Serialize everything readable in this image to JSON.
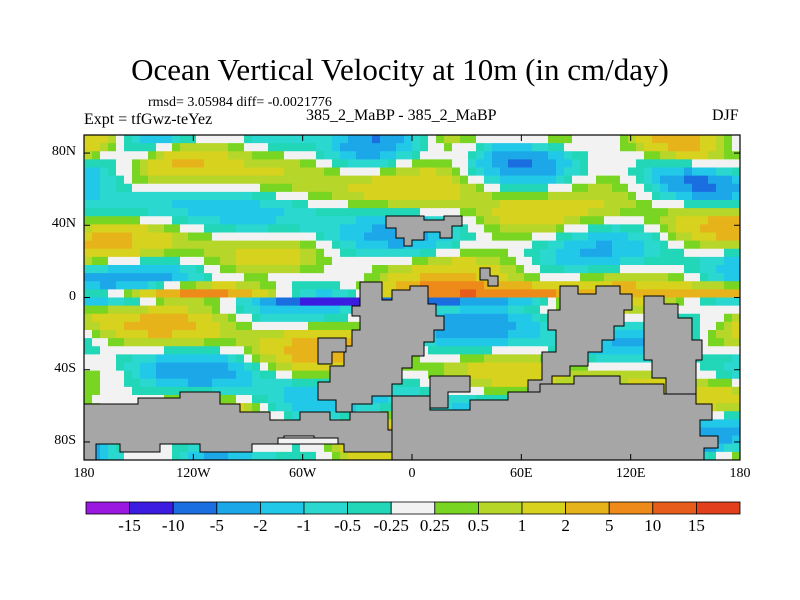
{
  "header": {
    "title": "Ocean Vertical Velocity at 10m (in cm/day)",
    "stats": "rmsd= 3.05984  diff= -0.0021776",
    "experiment": "Expt = tfGwz-teYez",
    "case_name": "385_2_MaBP - 385_2_MaBP",
    "season": "DJF"
  },
  "map": {
    "y_ticks": [
      {
        "lat": 80,
        "label": "80N"
      },
      {
        "lat": 40,
        "label": "40N"
      },
      {
        "lat": 0,
        "label": "0"
      },
      {
        "lat": -40,
        "label": "40S"
      },
      {
        "lat": -80,
        "label": "80S"
      }
    ],
    "x_ticks": [
      {
        "lon": -180,
        "label": "180"
      },
      {
        "lon": -120,
        "label": "120W"
      },
      {
        "lon": -60,
        "label": "60W"
      },
      {
        "lon": 0,
        "label": "0"
      },
      {
        "lon": 60,
        "label": "60E"
      },
      {
        "lon": 120,
        "label": "120E"
      },
      {
        "lon": 180,
        "label": "180"
      }
    ],
    "lon_range": [
      -180,
      180
    ],
    "lat_range": [
      -90,
      90
    ],
    "land_color": "#a6a6a6"
  },
  "colorbar": {
    "colors": [
      "#9a18e0",
      "#3b1ce0",
      "#1a6ee0",
      "#1ca8e8",
      "#22c8e8",
      "#2ad8d0",
      "#22d6b8",
      "#f2f2f2",
      "#78d622",
      "#b6d62a",
      "#d6d21e",
      "#e6b41a",
      "#ee8a1a",
      "#e65c1a",
      "#e2401c"
    ],
    "labels": [
      "-15",
      "-10",
      "-5",
      "-2",
      "-1",
      "-0.5",
      "-0.25",
      "0.25",
      "0.5",
      "1",
      "2",
      "5",
      "10",
      "15"
    ]
  }
}
